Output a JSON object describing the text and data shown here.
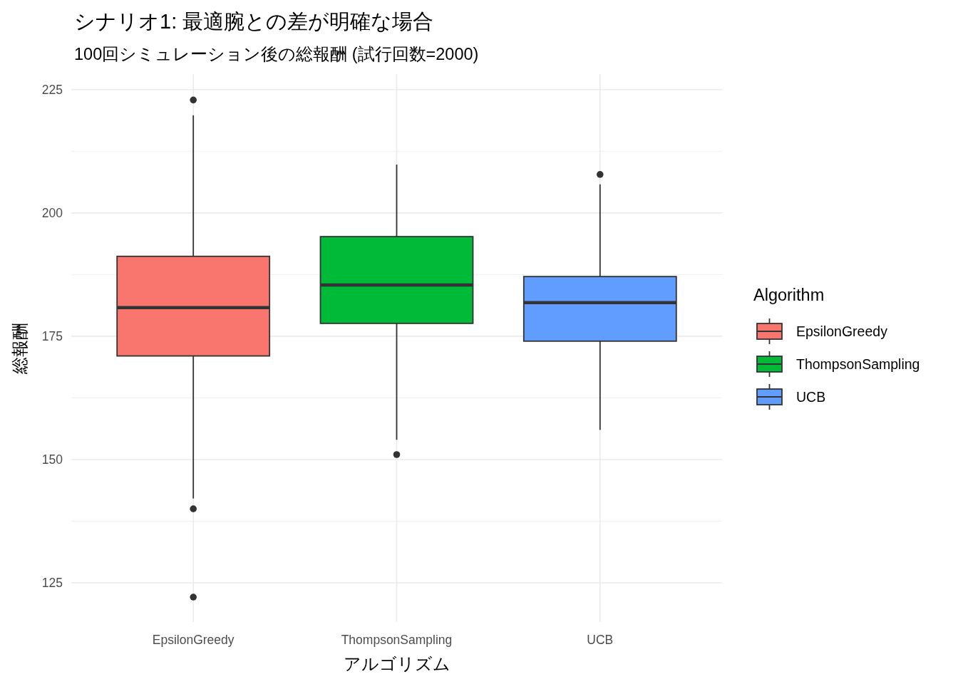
{
  "chart_data": {
    "type": "box",
    "title": "シナリオ1: 最適腕との差が明確な場合",
    "subtitle": "100回シミュレーション後の総報酬 (試行回数=2000)",
    "xlabel": "アルゴリズム",
    "ylabel": "総報酬",
    "legend_title": "Algorithm",
    "categories": [
      "EpsilonGreedy",
      "ThompsonSampling",
      "UCB"
    ],
    "series": [
      {
        "name": "EpsilonGreedy",
        "color": "#f8766d",
        "boxes": [
          {
            "low": 142.1,
            "q1": 171.0,
            "median": 180.8,
            "q3": 191.2,
            "high": 219.8,
            "outliers": [
              222.9,
              140.0,
              122.1
            ]
          },
          null,
          null
        ]
      },
      {
        "name": "ThompsonSampling",
        "color": "#00ba38",
        "boxes": [
          null,
          {
            "low": 154.0,
            "q1": 177.6,
            "median": 185.4,
            "q3": 195.2,
            "high": 209.8,
            "outliers": [
              151.0
            ]
          },
          null
        ]
      },
      {
        "name": "UCB",
        "color": "#619cff",
        "boxes": [
          null,
          null,
          {
            "low": 156.0,
            "q1": 174.0,
            "median": 181.8,
            "q3": 187.1,
            "high": 205.8,
            "outliers": [
              207.8
            ]
          }
        ]
      }
    ],
    "ylim": [
      117.05,
      228.15
    ],
    "yticks": [
      125,
      {
        "value": 137.5,
        "label": null
      },
      150,
      {
        "value": 162.5,
        "label": null
      },
      175,
      {
        "value": 187.5,
        "label": null
      },
      200,
      {
        "value": 212.5,
        "label": null
      },
      225
    ],
    "grid": true,
    "legend": "right"
  }
}
